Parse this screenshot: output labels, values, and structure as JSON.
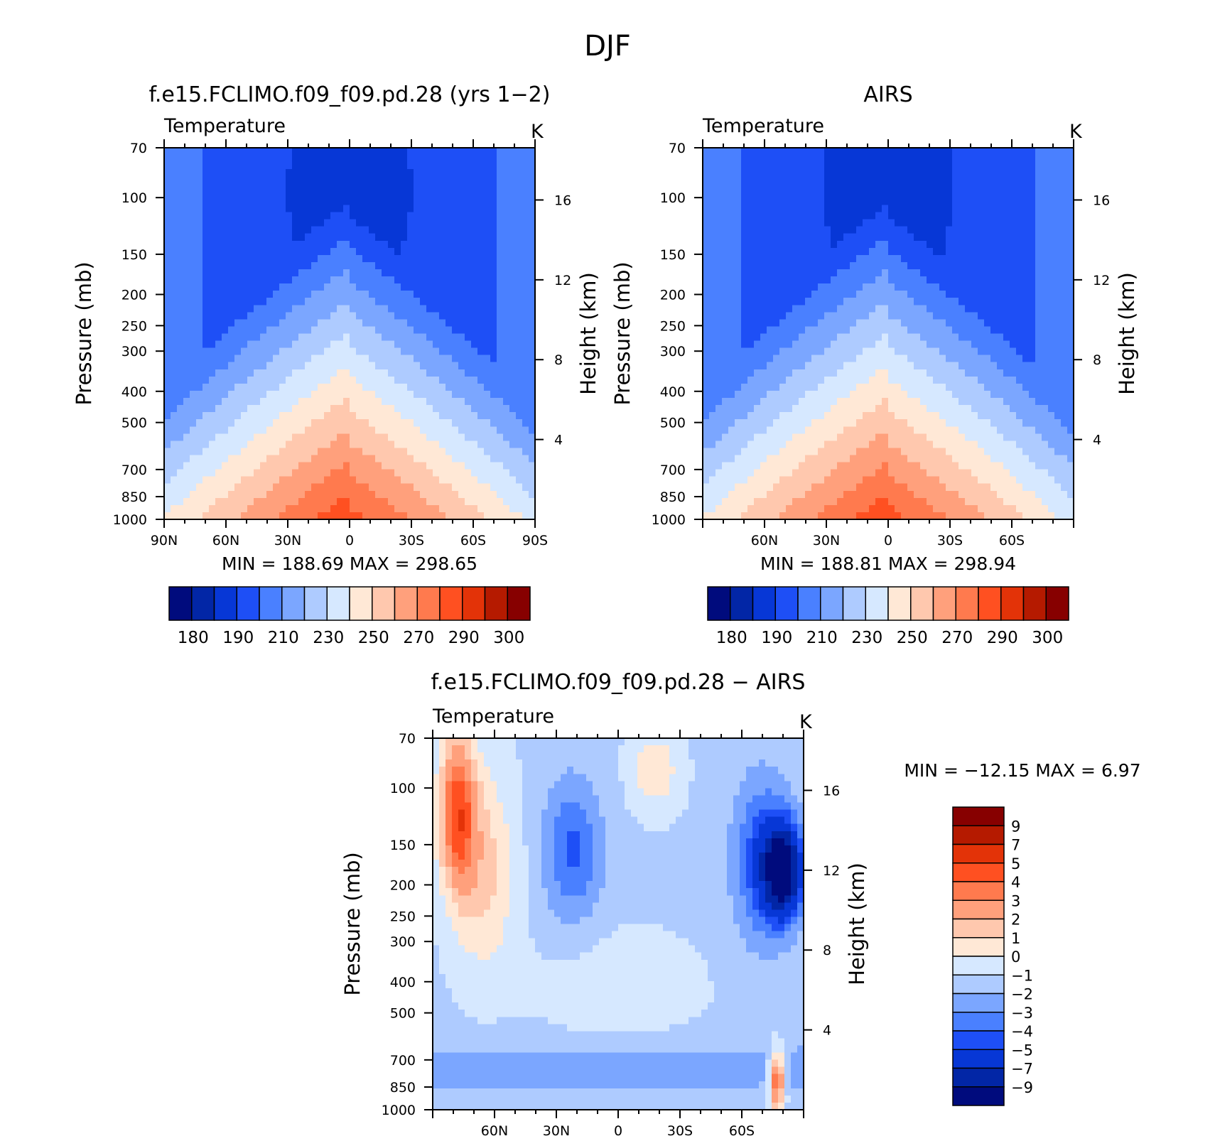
{
  "figure": {
    "title": "DJF"
  },
  "chart_data": [
    {
      "type": "heatmap",
      "title": "f.e15.FCLIMO.f09_f09.pd.28 (yrs 1−2)",
      "left_string": "Temperature",
      "right_string": "K",
      "ylabel": "Pressure (mb)",
      "ylabel_right": "Height (km)",
      "x_ticks": [
        "90N",
        "60N",
        "30N",
        "0",
        "30S",
        "60S",
        "90S"
      ],
      "x_tick_values": [
        90,
        60,
        30,
        0,
        -30,
        -60,
        -90
      ],
      "xlim": [
        90,
        -90
      ],
      "y_ticks": [
        "70",
        "100",
        "150",
        "200",
        "250",
        "300",
        "400",
        "500",
        "700",
        "850",
        "1000"
      ],
      "y_tick_values": [
        70,
        100,
        150,
        200,
        250,
        300,
        400,
        500,
        700,
        850,
        1000
      ],
      "ylim": [
        1000,
        70
      ],
      "y_scale": "log",
      "y2_ticks": [
        "16",
        "12",
        "8",
        "4"
      ],
      "y2_tick_values": [
        16,
        12,
        8,
        4
      ],
      "stats": "MIN =  188.69   MAX =  298.65",
      "min": 188.69,
      "max": 298.65,
      "colorbar_labels": [
        "180",
        "190",
        "210",
        "230",
        "250",
        "270",
        "290",
        "300"
      ],
      "colorbar_orientation": "horizontal",
      "field": "model"
    },
    {
      "type": "heatmap",
      "title": "AIRS",
      "left_string": "Temperature",
      "right_string": "K",
      "ylabel": "Pressure (mb)",
      "ylabel_right": "Height (km)",
      "x_ticks": [
        "60N",
        "30N",
        "0",
        "30S",
        "60S"
      ],
      "x_tick_values": [
        60,
        30,
        0,
        -30,
        -60
      ],
      "xlim": [
        90,
        -90
      ],
      "y_ticks": [
        "70",
        "100",
        "150",
        "200",
        "250",
        "300",
        "400",
        "500",
        "700",
        "850",
        "1000"
      ],
      "y_tick_values": [
        70,
        100,
        150,
        200,
        250,
        300,
        400,
        500,
        700,
        850,
        1000
      ],
      "ylim": [
        1000,
        70
      ],
      "y_scale": "log",
      "y2_ticks": [
        "16",
        "12",
        "8",
        "4"
      ],
      "y2_tick_values": [
        16,
        12,
        8,
        4
      ],
      "stats": "MIN =  188.81   MAX =  298.94",
      "min": 188.81,
      "max": 298.94,
      "colorbar_labels": [
        "180",
        "190",
        "210",
        "230",
        "250",
        "270",
        "290",
        "300"
      ],
      "colorbar_orientation": "horizontal",
      "field": "obs"
    },
    {
      "type": "heatmap",
      "title": "f.e15.FCLIMO.f09_f09.pd.28 − AIRS",
      "left_string": "Temperature",
      "right_string": "K",
      "ylabel": "Pressure (mb)",
      "ylabel_right": "Height (km)",
      "x_ticks": [
        "60N",
        "30N",
        "0",
        "30S",
        "60S"
      ],
      "x_tick_values": [
        60,
        30,
        0,
        -30,
        -60
      ],
      "xlim": [
        90,
        -90
      ],
      "y_ticks": [
        "70",
        "100",
        "150",
        "200",
        "250",
        "300",
        "400",
        "500",
        "700",
        "850",
        "1000"
      ],
      "y_tick_values": [
        70,
        100,
        150,
        200,
        250,
        300,
        400,
        500,
        700,
        850,
        1000
      ],
      "ylim": [
        1000,
        70
      ],
      "y_scale": "log",
      "y2_ticks": [
        "16",
        "12",
        "8",
        "4"
      ],
      "y2_tick_values": [
        16,
        12,
        8,
        4
      ],
      "stats": "MIN = −12.15   MAX =    6.97",
      "min": -12.15,
      "max": 6.97,
      "colorbar_labels": [
        "9",
        "7",
        "5",
        "4",
        "3",
        "2",
        "1",
        "0",
        "−1",
        "−2",
        "−3",
        "−4",
        "−5",
        "−7",
        "−9"
      ],
      "colorbar_orientation": "vertical",
      "field": "diff"
    }
  ],
  "colors": {
    "absolute": [
      "#000b7d",
      "#0226a6",
      "#0737d6",
      "#1e4ff6",
      "#4a80ff",
      "#7ba6ff",
      "#aecbff",
      "#d6e8ff",
      "#ffe8d6",
      "#ffc8ae",
      "#ffa07c",
      "#ff7a4e",
      "#ff5021",
      "#e33308",
      "#b51a00",
      "#870000"
    ],
    "difference": [
      "#870000",
      "#b51a00",
      "#e33308",
      "#ff5021",
      "#ff7a4e",
      "#ffa07c",
      "#ffc8ae",
      "#ffe8d6",
      "#d6e8ff",
      "#aecbff",
      "#7ba6ff",
      "#4a80ff",
      "#1e4ff6",
      "#0737d6",
      "#0226a6",
      "#000b7d"
    ]
  }
}
